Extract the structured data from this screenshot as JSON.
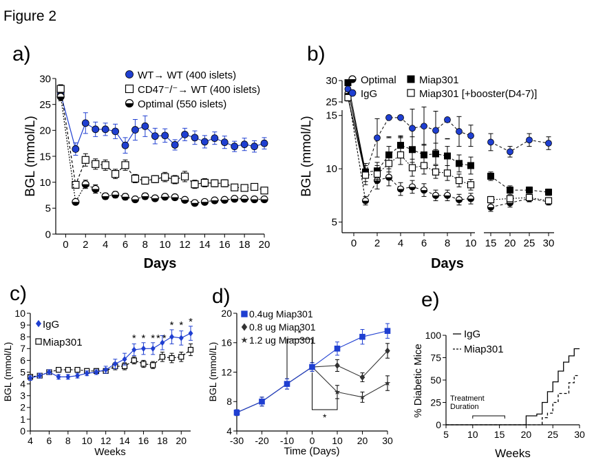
{
  "figure_title": "Figure 2",
  "colors": {
    "blue": "#1f3fd1",
    "black": "#000000",
    "gray": "#888888"
  },
  "chart_data": [
    {
      "panel": "a)",
      "type": "line",
      "xlabel": "Days",
      "ylabel": "BGL (mmol/L)",
      "xlim": [
        -1,
        20
      ],
      "ylim": [
        0,
        30
      ],
      "x_ticks": [
        "0",
        "2",
        "4",
        "6",
        "8",
        "10",
        "12",
        "14",
        "16",
        "18",
        "20"
      ],
      "y_ticks": [
        "0",
        "5",
        "10",
        "15",
        "20",
        "25",
        "30"
      ],
      "series": [
        {
          "name": "WT→ WT (400 islets)",
          "marker": "filled-circle",
          "color": "#1f3fd1",
          "x": [
            -0.5,
            1,
            2,
            3,
            4,
            5,
            6,
            7,
            8,
            9,
            10,
            11,
            12,
            13,
            14,
            15,
            16,
            17,
            18,
            19,
            20
          ],
          "y": [
            27,
            16.4,
            21.4,
            20.2,
            20.2,
            19.8,
            17.1,
            20.1,
            20.8,
            18.9,
            19,
            17.2,
            19.2,
            18.6,
            17.8,
            18.5,
            17.7,
            16.9,
            17.3,
            16.9,
            17.5
          ],
          "err": [
            1,
            1.2,
            2,
            1.4,
            1.2,
            1.4,
            1.5,
            2,
            2,
            1.5,
            1.3,
            1,
            1.2,
            1.3,
            1.2,
            1.2,
            1.2,
            1,
            1.2,
            1.1,
            1.1
          ]
        },
        {
          "name": "CD47⁻/⁻→ WT (400 islets)",
          "marker": "open-square",
          "color": "#000000",
          "x": [
            -0.5,
            1,
            2,
            3,
            4,
            5,
            6,
            7,
            8,
            9,
            10,
            11,
            12,
            13,
            14,
            15,
            16,
            17,
            18,
            19,
            20
          ],
          "y": [
            28,
            9.5,
            14.3,
            13.5,
            13.3,
            11.6,
            13.3,
            10.7,
            10.3,
            10.6,
            11,
            10.5,
            11.1,
            9.6,
            9.9,
            9.8,
            9.8,
            9,
            8.9,
            9.1,
            8.4
          ],
          "err": [
            0.8,
            0.6,
            1.2,
            1,
            1,
            0.9,
            1,
            0.8,
            0.7,
            0.7,
            0.9,
            0.8,
            1,
            0.8,
            0.8,
            0.7,
            0.7,
            0.6,
            0.6,
            0.6,
            0.6
          ]
        },
        {
          "name": "Optimal (550 islets)",
          "marker": "half-circle",
          "color": "#000000",
          "x": [
            -0.5,
            1,
            2,
            3,
            4,
            5,
            6,
            7,
            8,
            9,
            10,
            11,
            12,
            13,
            14,
            15,
            16,
            17,
            18,
            19,
            20
          ],
          "y": [
            26.5,
            6.2,
            9.6,
            8.7,
            7.3,
            7.6,
            7.2,
            6.7,
            7.3,
            6.9,
            7.2,
            7.1,
            6.6,
            6,
            6.2,
            6.5,
            6.6,
            6.8,
            6.8,
            6.7,
            6.7
          ],
          "err": [
            0.8,
            0.4,
            0.8,
            0.8,
            0.6,
            0.6,
            0.6,
            0.5,
            0.6,
            0.5,
            0.5,
            0.5,
            0.5,
            0.4,
            0.4,
            0.4,
            0.4,
            0.4,
            0.4,
            0.4,
            0.4
          ]
        }
      ]
    },
    {
      "panel": "b)",
      "type": "line",
      "xlabel": "Days",
      "ylabel": "BGL (mmol/L)",
      "ylim": [
        4,
        30
      ],
      "x_ticks": [
        "0",
        "2",
        "4",
        "6",
        "8",
        "10",
        "15",
        "20",
        "25",
        "30"
      ],
      "y_ticks": [
        "5",
        "10",
        "15",
        "25",
        "30"
      ],
      "axis_break_y": [
        15.5,
        25.5
      ],
      "axis_break_x": [
        10.3,
        13
      ],
      "series": [
        {
          "name": "Optimal",
          "marker": "half-circle",
          "color": "#000000",
          "x": [
            -0.5,
            1,
            2,
            3,
            4,
            5,
            6,
            7,
            8,
            9,
            10,
            15,
            20,
            25,
            30
          ],
          "y": [
            27,
            7,
            8.9,
            9.2,
            8.1,
            8.3,
            8,
            7.5,
            7.5,
            7.1,
            7.2,
            6.4,
            6.8,
            7.2,
            6.9
          ],
          "err": [
            0.8,
            0.4,
            0.8,
            0.8,
            0.6,
            0.6,
            0.6,
            0.5,
            0.5,
            0.5,
            0.5,
            0.4,
            0.4,
            0.3,
            0.3
          ]
        },
        {
          "name": "Miap301",
          "marker": "filled-square",
          "color": "#000000",
          "x": [
            -0.5,
            1,
            2,
            3,
            4,
            5,
            6,
            7,
            8,
            9,
            10,
            15,
            20,
            25,
            30
          ],
          "y": [
            29.5,
            9.7,
            9.8,
            11.3,
            12.2,
            11.8,
            11.3,
            11.4,
            11.2,
            10.5,
            10.3,
            9.3,
            8,
            8,
            7.8
          ],
          "err": [
            0.5,
            0.6,
            0.8,
            0.8,
            0.9,
            1.2,
            1,
            1,
            0.9,
            0.8,
            0.8,
            0.4,
            0.4,
            0.3,
            0.3
          ]
        },
        {
          "name": "IgG",
          "marker": "filled-circle",
          "color": "#1f3fd1",
          "x": [
            -0.5,
            1,
            2,
            3,
            4,
            5,
            6,
            7,
            8,
            9,
            10,
            15,
            20,
            25,
            30
          ],
          "y": [
            28,
            9.5,
            12.9,
            14.8,
            14.8,
            13.8,
            14,
            13.6,
            14.6,
            13.5,
            13.1,
            12.5,
            11.6,
            12.7,
            12.4
          ],
          "err": [
            1,
            1,
            1.8,
            1.8,
            1.8,
            1.8,
            1.8,
            1.8,
            1.8,
            1.4,
            1,
            0.8,
            0.5,
            0.6,
            0.6
          ]
        },
        {
          "name": "Miap301 [+booster(D4-7)]",
          "marker": "open-square",
          "color": "#000000",
          "x": [
            -0.5,
            1,
            2,
            3,
            4,
            5,
            6,
            7,
            8,
            9,
            10,
            15,
            20,
            25,
            30
          ],
          "y": [
            26,
            9.4,
            9.5,
            10.5,
            11.3,
            10.1,
            10.3,
            9.7,
            9.6,
            8.9,
            8.5,
            7.1,
            7.2,
            7.3,
            7
          ],
          "err": [
            0.8,
            0.6,
            0.8,
            0.8,
            0.9,
            0.8,
            0.8,
            0.6,
            0.7,
            0.6,
            0.5,
            0.3,
            0.3,
            0.3,
            0.3
          ]
        }
      ]
    },
    {
      "panel": "c)",
      "type": "line",
      "xlabel": "Weeks",
      "ylabel": "BGL (mmol/L)",
      "xlim": [
        4,
        21
      ],
      "ylim": [
        0,
        10
      ],
      "x_ticks": [
        "4",
        "6",
        "8",
        "10",
        "12",
        "14",
        "16",
        "18",
        "20"
      ],
      "y_ticks": [
        "0",
        "1",
        "2",
        "3",
        "4",
        "5",
        "6",
        "7",
        "8",
        "9",
        "10"
      ],
      "annotations": [
        "*",
        "*",
        "*",
        "*",
        "*",
        "*",
        "*",
        "*"
      ],
      "series": [
        {
          "name": "IgG",
          "marker": "filled-diamond",
          "color": "#1f3fd1",
          "x": [
            4,
            5,
            6,
            7,
            8,
            9,
            10,
            11,
            12,
            13,
            14,
            15,
            16,
            17,
            18,
            19,
            20,
            21
          ],
          "y": [
            4.5,
            4.7,
            5,
            4.6,
            4.6,
            4.7,
            4.9,
            5,
            5.2,
            5.7,
            6.1,
            6.9,
            7,
            7,
            7.5,
            8,
            7.9,
            8.3
          ],
          "err": [
            0.2,
            0.2,
            0.2,
            0.2,
            0.2,
            0.2,
            0.2,
            0.2,
            0.3,
            0.4,
            0.5,
            0.5,
            0.5,
            0.5,
            0.6,
            0.6,
            0.6,
            0.6
          ]
        },
        {
          "name": "Miap301",
          "marker": "open-square",
          "color": "#000000",
          "x": [
            4,
            5,
            6,
            7,
            8,
            9,
            10,
            11,
            12,
            13,
            14,
            15,
            16,
            17,
            18,
            19,
            20,
            21
          ],
          "y": [
            4.6,
            4.7,
            5,
            5.2,
            5.2,
            5.2,
            5.1,
            5.1,
            5.1,
            5.5,
            5.5,
            6,
            5.7,
            5.6,
            6.3,
            6.2,
            6.3,
            6.9
          ],
          "err": [
            0.2,
            0.2,
            0.2,
            0.2,
            0.2,
            0.2,
            0.2,
            0.2,
            0.2,
            0.3,
            0.3,
            0.3,
            0.3,
            0.3,
            0.4,
            0.4,
            0.4,
            0.5
          ]
        }
      ]
    },
    {
      "panel": "d)",
      "type": "line",
      "xlabel": "Time (Days)",
      "ylabel": "BGL (mmol/L)",
      "xlim": [
        -30,
        30
      ],
      "ylim": [
        4,
        20
      ],
      "x_ticks": [
        "-30",
        "-20",
        "-10",
        "0",
        "10",
        "20",
        "30"
      ],
      "y_ticks": [
        "4",
        "8",
        "12",
        "16",
        "20"
      ],
      "annotations": [
        "*",
        "*"
      ],
      "series": [
        {
          "name": "0.4ug  Miap301",
          "marker": "filled-square",
          "color": "#1f3fd1",
          "x": [
            -30,
            -20,
            -10,
            0,
            10,
            20,
            30
          ],
          "y": [
            6.5,
            8,
            10.4,
            12.7,
            15.2,
            16.8,
            17.6
          ],
          "err": [
            0.4,
            0.6,
            0.7,
            0.6,
            0.9,
            1,
            1
          ]
        },
        {
          "name": "0.8 ug Miap301",
          "marker": "filled-diamond",
          "color": "#333333",
          "x": [
            -30,
            -20,
            -10,
            0,
            10,
            20,
            30
          ],
          "y": [
            6.5,
            8,
            10.4,
            12.7,
            12.9,
            11.3,
            14.9
          ],
          "err": [
            0.4,
            0.6,
            0.7,
            0.6,
            0.8,
            0.6,
            1
          ]
        },
        {
          "name": "1.2 ug Miap301",
          "marker": "filled-star",
          "color": "#333333",
          "x": [
            -30,
            -20,
            -10,
            0,
            10,
            20,
            30
          ],
          "y": [
            6.5,
            8,
            10.4,
            12.7,
            9.3,
            8.6,
            10.5
          ],
          "err": [
            0.4,
            0.6,
            0.7,
            0.6,
            0.9,
            0.7,
            1
          ]
        }
      ]
    },
    {
      "panel": "e)",
      "type": "line",
      "xlabel": "Weeks",
      "ylabel": "% Diabetic Mice",
      "xlim": [
        5,
        30
      ],
      "ylim": [
        0,
        100
      ],
      "x_ticks": [
        "5",
        "10",
        "15",
        "20",
        "25",
        "30"
      ],
      "y_ticks": [
        "0",
        "25",
        "50",
        "75",
        "100"
      ],
      "annotation": "Treatment Duration",
      "series": [
        {
          "name": "IgG",
          "style": "solid-step",
          "color": "#000000",
          "x": [
            5,
            19,
            20,
            21,
            22,
            23,
            24,
            25,
            26,
            27,
            28,
            29,
            30
          ],
          "y": [
            0,
            0,
            10,
            10,
            12,
            25,
            37,
            48,
            60,
            70,
            77,
            85,
            85
          ]
        },
        {
          "name": "Miap301",
          "style": "dashed-step",
          "color": "#000000",
          "x": [
            5,
            22,
            23,
            24,
            25,
            26,
            27,
            28,
            29,
            30
          ],
          "y": [
            0,
            0,
            8,
            13,
            25,
            35,
            35,
            47,
            55,
            55
          ]
        }
      ]
    }
  ]
}
